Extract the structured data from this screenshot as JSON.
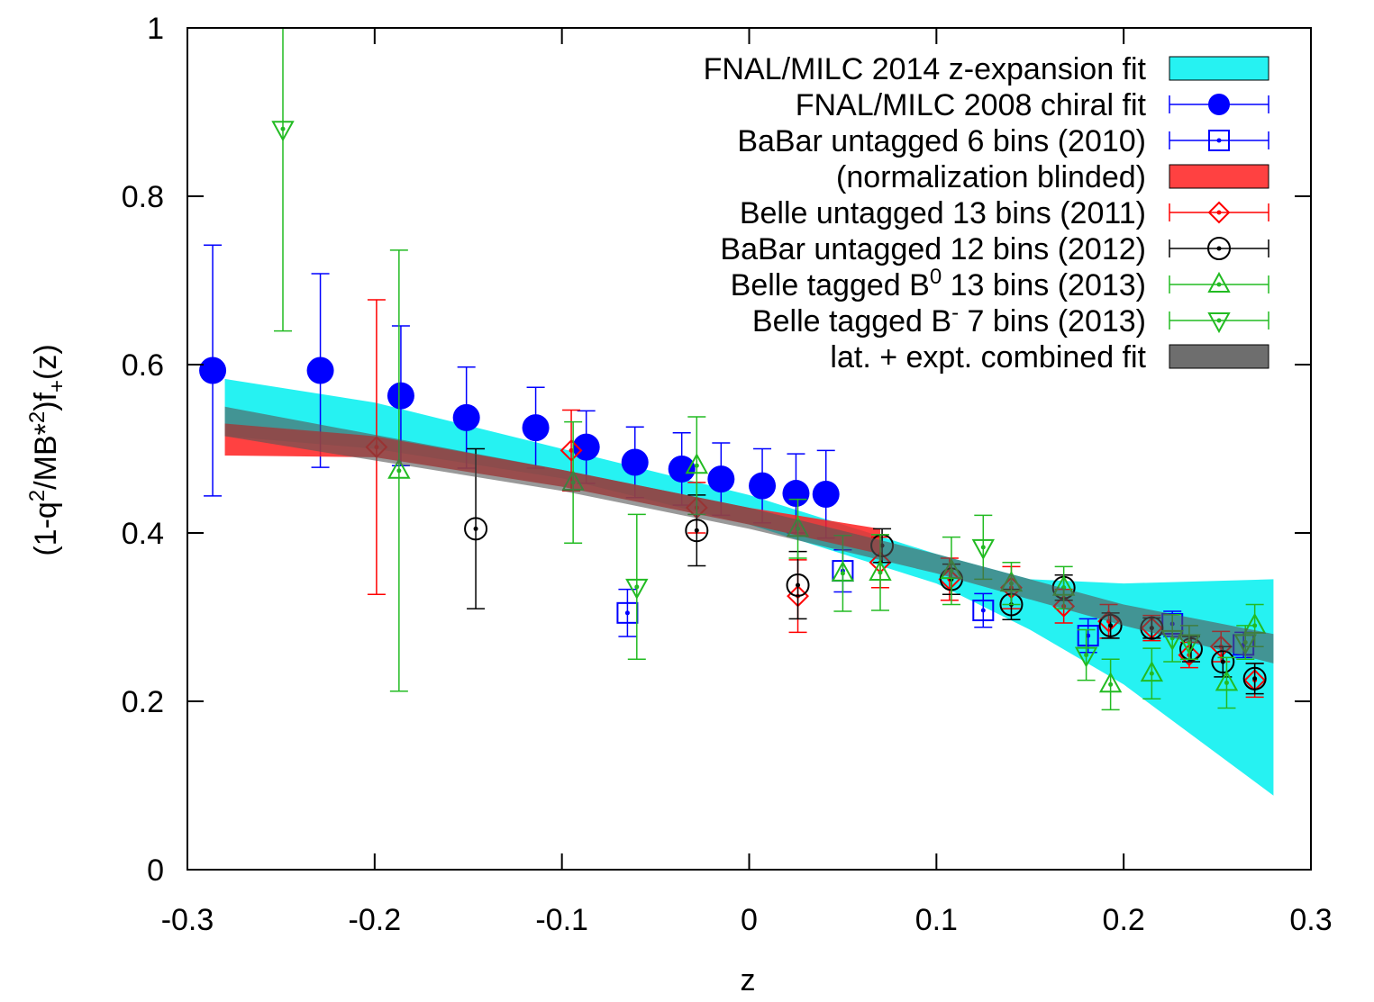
{
  "chart_data": {
    "type": "errorbar",
    "x_label": "z",
    "y_label": [
      {
        "text": "(1-q"
      },
      {
        "text": "2",
        "shift": "super"
      },
      {
        "text": "/MB*"
      },
      {
        "text": "2",
        "shift": "super"
      },
      {
        "text": ")f"
      },
      {
        "text": "+",
        "shift": "sub"
      },
      {
        "text": "(z)"
      }
    ],
    "xlim": [
      -0.3,
      0.3
    ],
    "xticks": [
      -0.3,
      -0.2,
      -0.1,
      0,
      0.1,
      0.2,
      0.3
    ],
    "ylim": [
      0,
      1
    ],
    "yticks": [
      0,
      0.2,
      0.4,
      0.6,
      0.8,
      1
    ],
    "series": [
      {
        "name": "FNAL/MILC 2014 z-expansion fit",
        "marker": "band",
        "color": "#00f0f0",
        "x": [
          -0.28,
          -0.2,
          -0.1,
          0,
          0.1,
          0.15,
          0.2,
          0.28
        ],
        "lower": [
          0.515,
          0.5,
          0.465,
          0.41,
          0.34,
          0.285,
          0.22,
          0.088
        ],
        "upper": [
          0.583,
          0.555,
          0.5,
          0.445,
          0.375,
          0.345,
          0.34,
          0.345
        ]
      },
      {
        "name": "FNAL/MILC 2008 chiral fit",
        "marker": "circle-filled",
        "color": "#0000ff",
        "x": [
          -0.2865,
          -0.229,
          -0.186,
          -0.151,
          -0.114,
          -0.087,
          -0.061,
          -0.036,
          -0.015,
          0.007,
          0.025,
          0.041
        ],
        "values": [
          0.593,
          0.593,
          0.563,
          0.537,
          0.525,
          0.502,
          0.484,
          0.476,
          0.464,
          0.456,
          0.447,
          0.446
        ],
        "errors": [
          0.149,
          0.115,
          0.083,
          0.06,
          0.048,
          0.043,
          0.042,
          0.043,
          0.043,
          0.044,
          0.047,
          0.052
        ]
      },
      {
        "name": "BaBar untagged 6 bins (2010)",
        "marker": "square",
        "color": "#0000ff",
        "x": [
          -0.065,
          0.05,
          0.125,
          0.181,
          0.226,
          0.264
        ],
        "values": [
          0.305,
          0.355,
          0.308,
          0.278,
          0.292,
          0.267
        ],
        "errors": [
          0.028,
          0.025,
          0.02,
          0.02,
          0.015,
          0.015
        ]
      },
      {
        "name": "(normalization blinded)",
        "marker": "band",
        "color": "#ff2020",
        "x": [
          -0.28,
          -0.2,
          -0.1,
          0,
          0.07
        ],
        "lower": [
          0.492,
          0.49,
          0.455,
          0.41,
          0.375
        ],
        "upper": [
          0.53,
          0.515,
          0.475,
          0.43,
          0.405
        ]
      },
      {
        "name": "Belle untagged 13 bins (2011)",
        "marker": "diamond",
        "color": "#ff0000",
        "x": [
          -0.199,
          -0.095,
          -0.028,
          0.026,
          0.07,
          0.107,
          0.14,
          0.168,
          0.192,
          0.215,
          0.235,
          0.252,
          0.27
        ],
        "values": [
          0.502,
          0.498,
          0.43,
          0.325,
          0.365,
          0.345,
          0.335,
          0.313,
          0.295,
          0.287,
          0.255,
          0.265,
          0.225
        ],
        "errors": [
          0.175,
          0.048,
          0.03,
          0.043,
          0.03,
          0.025,
          0.025,
          0.02,
          0.02,
          0.015,
          0.015,
          0.018,
          0.02
        ]
      },
      {
        "name": "BaBar untagged 12 bins (2012)",
        "marker": "circle",
        "color": "#000000",
        "x": [
          -0.146,
          -0.028,
          0.026,
          0.071,
          0.108,
          0.14,
          0.168,
          0.193,
          0.215,
          0.236,
          0.253,
          0.27
        ],
        "values": [
          0.405,
          0.403,
          0.338,
          0.385,
          0.345,
          0.315,
          0.335,
          0.29,
          0.287,
          0.262,
          0.247,
          0.227
        ],
        "errors": [
          0.095,
          0.042,
          0.04,
          0.02,
          0.018,
          0.018,
          0.015,
          0.015,
          0.012,
          0.015,
          0.018,
          0.018
        ]
      },
      {
        "name": [
          {
            "text": "Belle tagged B"
          },
          {
            "text": "0",
            "shift": "super"
          },
          {
            "text": " 13 bins (2013)"
          }
        ],
        "marker": "triangle-up",
        "color": "#22bb22",
        "x": [
          -0.187,
          -0.094,
          -0.028,
          0.026,
          0.05,
          0.07,
          0.108,
          0.14,
          0.168,
          0.193,
          0.215,
          0.255,
          0.27
        ],
        "values": [
          0.474,
          0.46,
          0.48,
          0.405,
          0.352,
          0.353,
          0.355,
          0.34,
          0.335,
          0.22,
          0.233,
          0.222,
          0.29
        ],
        "errors": [
          0.262,
          0.072,
          0.058,
          0.035,
          0.045,
          0.045,
          0.04,
          0.025,
          0.025,
          0.03,
          0.03,
          0.03,
          0.025
        ]
      },
      {
        "name": [
          {
            "text": "Belle tagged B"
          },
          {
            "text": "-",
            "shift": "super"
          },
          {
            "text": " 7 bins (2013)"
          }
        ],
        "marker": "triangle-down",
        "color": "#22bb22",
        "x": [
          -0.249,
          -0.06,
          0.125,
          0.18,
          0.226,
          0.235,
          0.265
        ],
        "values": [
          0.88,
          0.336,
          0.383,
          0.255,
          0.275,
          0.27,
          0.27
        ],
        "errors": [
          0.24,
          0.086,
          0.038,
          0.03,
          0.028,
          0.02,
          0.02
        ]
      },
      {
        "name": "lat. + expt. combined fit",
        "marker": "band",
        "color": "#555555",
        "x": [
          -0.28,
          -0.1,
          0,
          0.1,
          0.2,
          0.28
        ],
        "lower": [
          0.515,
          0.45,
          0.405,
          0.352,
          0.29,
          0.245
        ],
        "upper": [
          0.55,
          0.475,
          0.43,
          0.375,
          0.315,
          0.28
        ]
      }
    ]
  }
}
